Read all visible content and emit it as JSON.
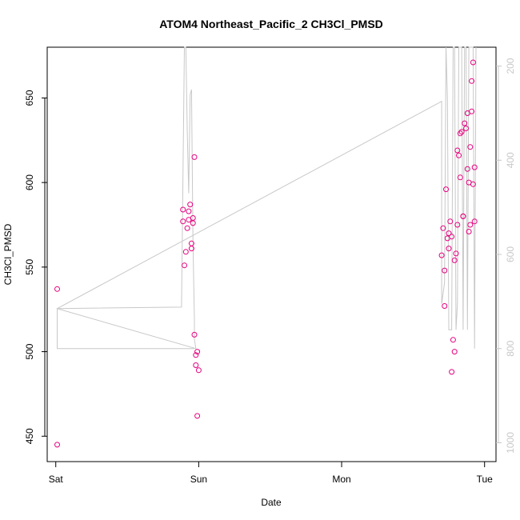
{
  "chart_data": {
    "type": "scatter",
    "title": "ATOM4 Northeast_Pacific_2 CH3Cl_PMSD",
    "xlabel": "Date",
    "ylabel": "CH3Cl_PMSD",
    "x_ticks": [
      "Sat",
      "Sun",
      "Mon",
      "Tue"
    ],
    "y_ticks": [
      450,
      500,
      550,
      600,
      650
    ],
    "y_right_ticks": [
      200,
      400,
      600,
      800,
      1000
    ],
    "xlim_days": [
      -0.06,
      3.08
    ],
    "ylim": [
      435,
      680
    ],
    "y_right_lim": [
      1040,
      160
    ],
    "colors": {
      "points": "#e6007e",
      "line": "#c8c8c8",
      "axis": "#000000",
      "right_axis": "#c8c8c8"
    },
    "series": [
      {
        "type": "scatter",
        "x_days": [
          0.01,
          0.01,
          0.89,
          0.89,
          0.9,
          0.91,
          0.92,
          0.93,
          0.93,
          0.94,
          0.95,
          0.95,
          0.96,
          0.96,
          0.97,
          0.97,
          0.98,
          0.98,
          0.99,
          0.99,
          1.0,
          2.7,
          2.71,
          2.72,
          2.72,
          2.73,
          2.74,
          2.75,
          2.75,
          2.76,
          2.77,
          2.77,
          2.78,
          2.79,
          2.79,
          2.8,
          2.81,
          2.81,
          2.82,
          2.83,
          2.83,
          2.84,
          2.85,
          2.85,
          2.86,
          2.87,
          2.88,
          2.88,
          2.89,
          2.89,
          2.9,
          2.9,
          2.91,
          2.91,
          2.92,
          2.92,
          2.93,
          2.93
        ],
        "y": [
          537,
          445,
          577,
          584,
          551,
          559,
          573,
          583,
          578,
          587,
          561,
          564,
          576,
          579,
          615,
          510,
          498,
          492,
          462,
          500,
          489,
          557,
          573,
          527,
          548,
          596,
          567,
          570,
          561,
          577,
          488,
          568,
          507,
          500,
          554,
          558,
          575,
          619,
          616,
          629,
          603,
          630,
          580,
          580,
          635,
          632,
          608,
          641,
          600,
          571,
          575,
          621,
          660,
          642,
          671,
          599,
          609,
          577
        ]
      }
    ],
    "line": {
      "x_days": [
        0.01,
        0.01,
        0.96,
        0.97,
        0.01,
        0.01,
        0.88,
        0.9,
        0.91,
        0.92,
        0.93,
        0.94,
        0.95,
        0.96,
        0.97,
        0.97,
        0.98,
        0.01,
        2.7,
        2.7,
        2.72,
        2.73,
        2.74,
        2.75,
        2.77,
        2.78,
        2.79,
        2.8,
        2.81,
        2.82,
        2.83,
        2.84,
        2.85,
        2.86,
        2.87,
        2.88,
        2.89,
        2.9,
        2.91,
        2.92,
        2.93,
        2.94
      ],
      "y_right": [
        800,
        800,
        800,
        800,
        800,
        715,
        712,
        160,
        160,
        340,
        470,
        260,
        250,
        570,
        740,
        780,
        800,
        715,
        275,
        705,
        660,
        160,
        270,
        760,
        760,
        160,
        160,
        760,
        705,
        160,
        160,
        160,
        760,
        160,
        160,
        760,
        160,
        160,
        160,
        160,
        800,
        160
      ]
    }
  }
}
